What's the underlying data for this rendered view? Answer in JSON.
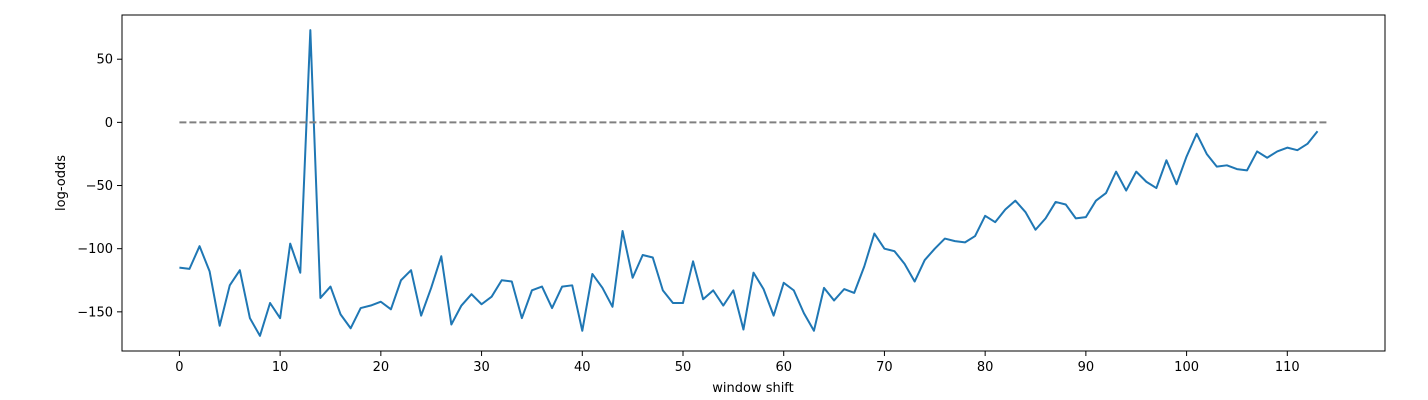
{
  "chart_data": {
    "type": "line",
    "title": "",
    "xlabel": "window shift",
    "ylabel": "log-odds",
    "xlim": [
      -5.7,
      119.7
    ],
    "ylim": [
      -181,
      85
    ],
    "x_ticks": [
      0,
      10,
      20,
      30,
      40,
      50,
      60,
      70,
      80,
      90,
      100,
      110
    ],
    "y_ticks": [
      50,
      0,
      -50,
      -100,
      -150
    ],
    "y_tick_labels": [
      "50",
      "0",
      "−50",
      "−100",
      "−150"
    ],
    "grid": false,
    "legend": "none",
    "series": [
      {
        "color": "#1f77b4",
        "line_style": "solid",
        "x": [
          0,
          1,
          2,
          3,
          4,
          5,
          6,
          7,
          8,
          9,
          10,
          11,
          12,
          13,
          14,
          15,
          16,
          17,
          18,
          19,
          20,
          21,
          22,
          23,
          24,
          25,
          26,
          27,
          28,
          29,
          30,
          31,
          32,
          33,
          34,
          35,
          36,
          37,
          38,
          39,
          40,
          41,
          42,
          43,
          44,
          45,
          46,
          47,
          48,
          49,
          50,
          51,
          52,
          53,
          54,
          55,
          56,
          57,
          58,
          59,
          60,
          61,
          62,
          63,
          64,
          65,
          66,
          67,
          68,
          69,
          70,
          71,
          72,
          73,
          74,
          75,
          76,
          77,
          78,
          79,
          80,
          81,
          82,
          83,
          84,
          85,
          86,
          87,
          88,
          89,
          90,
          91,
          92,
          93,
          94,
          95,
          96,
          97,
          98,
          99,
          100,
          101,
          102,
          103,
          104,
          105,
          106,
          107,
          108,
          109,
          110,
          111,
          112,
          113
        ],
        "values": [
          -115,
          -116,
          -98,
          -118,
          -161,
          -129,
          -117,
          -155,
          -169,
          -143,
          -155,
          -96,
          -119,
          73,
          -139,
          -130,
          -152,
          -163,
          -147,
          -145,
          -142,
          -148,
          -125,
          -117,
          -153,
          -131,
          -106,
          -160,
          -145,
          -136,
          -144,
          -138,
          -125,
          -126,
          -155,
          -133,
          -130,
          -147,
          -130,
          -129,
          -165,
          -120,
          -131,
          -146,
          -86,
          -123,
          -105,
          -107,
          -133,
          -143,
          -143,
          -110,
          -140,
          -133,
          -145,
          -133,
          -164,
          -119,
          -132,
          -153,
          -127,
          -133,
          -151,
          -165,
          -131,
          -141,
          -132,
          -135,
          -114,
          -88,
          -100,
          -102,
          -112,
          -126,
          -109,
          -100,
          -92,
          -94,
          -95,
          -90,
          -74,
          -79,
          -69,
          -62,
          -71,
          -85,
          -76,
          -63,
          -65,
          -76,
          -75,
          -62,
          -56,
          -39,
          -54,
          -39,
          -47,
          -52,
          -30,
          -49,
          -27,
          -9,
          -25,
          -35,
          -34,
          -37,
          -38,
          -23,
          -28,
          -23,
          -20,
          -22,
          -17,
          -7
        ]
      },
      {
        "color": "#808080",
        "line_style": "dashed",
        "x": [
          0,
          114
        ],
        "values": [
          0,
          0
        ]
      }
    ]
  }
}
